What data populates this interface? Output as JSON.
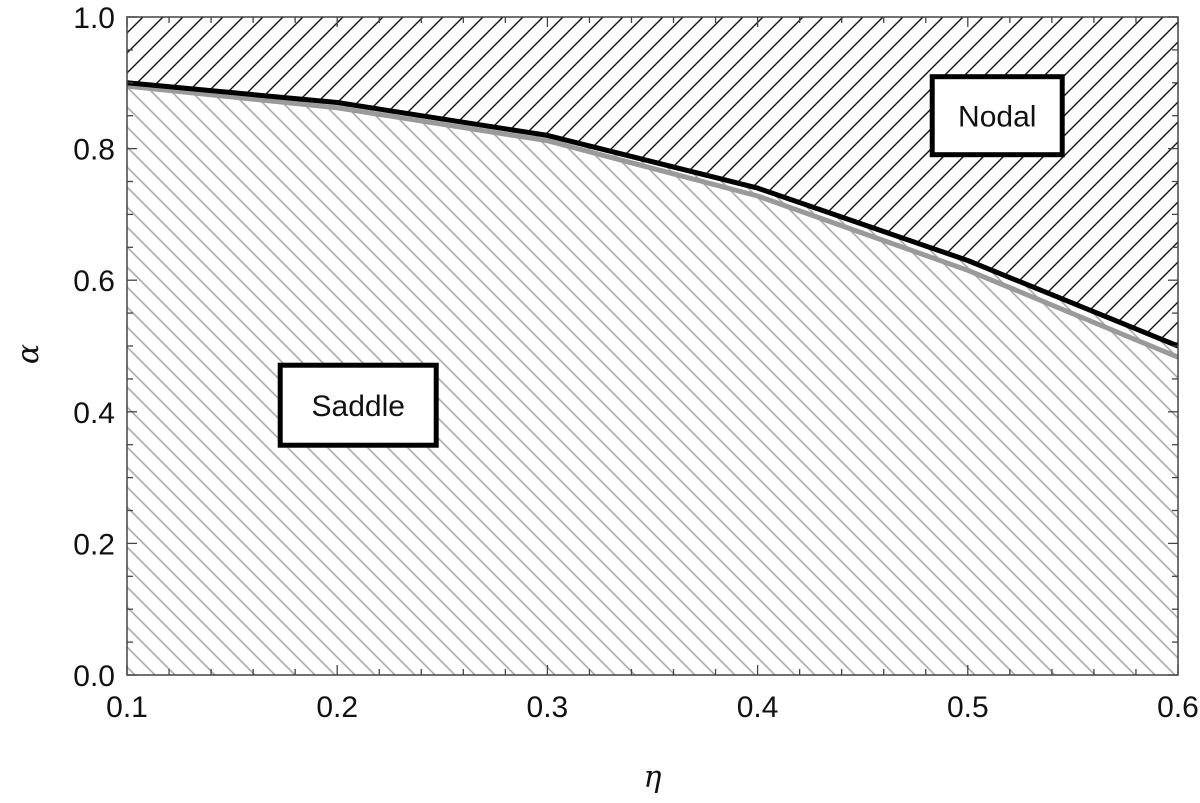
{
  "chart_data": {
    "type": "area",
    "xlabel": "η",
    "ylabel": "α",
    "xlim": [
      0.1,
      0.6
    ],
    "ylim": [
      0.0,
      1.0
    ],
    "x_ticks": [
      "0.1",
      "0.2",
      "0.3",
      "0.4",
      "0.5",
      "0.6"
    ],
    "y_ticks": [
      "0.0",
      "0.2",
      "0.4",
      "0.6",
      "0.8",
      "1.0"
    ],
    "grid": false,
    "series": [
      {
        "color": "#000000",
        "x": [
          0.1,
          0.2,
          0.3,
          0.4,
          0.5,
          0.6
        ],
        "y": [
          0.9,
          0.87,
          0.82,
          0.74,
          0.63,
          0.5
        ]
      },
      {
        "color": "#9a9a9a",
        "x": [
          0.1,
          0.2,
          0.3,
          0.4,
          0.5,
          0.6
        ],
        "y": [
          0.895,
          0.862,
          0.812,
          0.728,
          0.615,
          0.483
        ]
      }
    ],
    "regions": [
      {
        "label": "Nodal",
        "hatch": "diagonal-up",
        "color": "#000000",
        "position": "above curve"
      },
      {
        "label": "Saddle",
        "hatch": "diagonal-down",
        "color": "#aaaaaa",
        "position": "below curve"
      }
    ],
    "annotations": {
      "nodal": {
        "text": "Nodal",
        "x": 0.514,
        "y": 0.85
      },
      "saddle": {
        "text": "Saddle",
        "x": 0.21,
        "y": 0.41
      }
    }
  }
}
